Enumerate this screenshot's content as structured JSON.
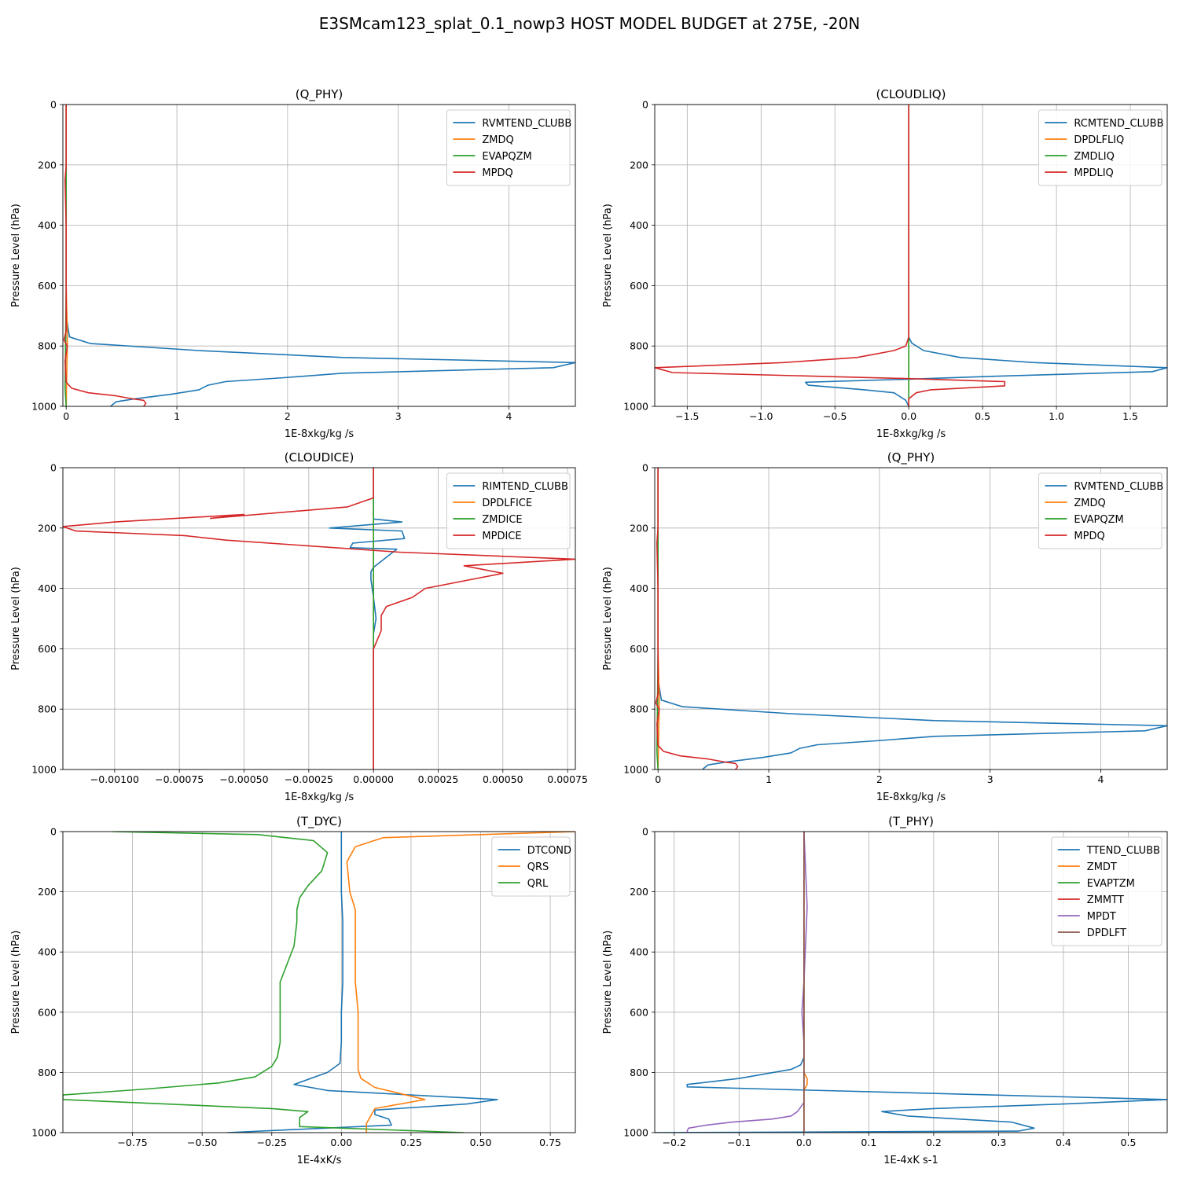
{
  "figure_title": "E3SMcam123_splat_0.1_nowp3 HOST MODEL BUDGET at 275E, -20N",
  "colors": {
    "c0": "#1f77b4",
    "c1": "#ff7f0e",
    "c2": "#2ca02c",
    "c3": "#d62728",
    "c4": "#9467bd",
    "c5": "#8c564b",
    "grid": "#b0b0b0"
  },
  "chart_data": [
    {
      "type": "line",
      "title": "(Q_PHY)",
      "xlabel": "1E-8xkg/kg /s",
      "ylabel": "Pressure Level (hPa)",
      "xlim": [
        -0.03,
        4.6
      ],
      "ylim": [
        1000,
        0
      ],
      "xticks": [
        0,
        1,
        2,
        3,
        4
      ],
      "xticklabels": [
        "0",
        "1",
        "2",
        "3",
        "4"
      ],
      "yticks": [
        0,
        200,
        400,
        600,
        800,
        1000
      ],
      "grid": true,
      "legend": "top-right",
      "series": [
        {
          "name": "RVMTEND_CLUBB",
          "color": "#1f77b4",
          "x": [
            0,
            0,
            0,
            0.03,
            0.22,
            1.2,
            2.5,
            4.6,
            4.4,
            2.5,
            1.97,
            1.44,
            1.28,
            1.2,
            0.95,
            0.62,
            0.45,
            0.4
          ],
          "y": [
            0,
            100,
            700,
            770,
            792,
            815,
            838,
            855,
            872,
            890,
            905,
            918,
            930,
            945,
            960,
            975,
            985,
            1000
          ]
        },
        {
          "name": "ZMDQ",
          "color": "#ff7f0e",
          "x": [
            0,
            0,
            0,
            0.01,
            0.01,
            0
          ],
          "y": [
            0,
            300,
            600,
            750,
            800,
            1000
          ]
        },
        {
          "name": "EVAPQZM",
          "color": "#2ca02c",
          "x": [
            0,
            0,
            0,
            -0.01,
            0
          ],
          "y": [
            0,
            200,
            600,
            940,
            1000
          ]
        },
        {
          "name": "MPDQ",
          "color": "#d62728",
          "x": [
            0,
            0,
            -0.01,
            0,
            0,
            0,
            -0.02,
            0.01,
            -0.01,
            0,
            0.05,
            0.2,
            0.45,
            0.6,
            0.7,
            0.72,
            0.7
          ],
          "y": [
            0,
            200,
            250,
            400,
            550,
            750,
            780,
            800,
            850,
            920,
            940,
            955,
            965,
            975,
            980,
            990,
            1000
          ]
        }
      ]
    },
    {
      "type": "line",
      "title": "(CLOUDLIQ)",
      "xlabel": "1E-8xkg/kg /s",
      "ylabel": "Pressure Level (hPa)",
      "xlim": [
        -1.72,
        1.75
      ],
      "ylim": [
        1000,
        0
      ],
      "xticks": [
        -1.5,
        -1.0,
        -0.5,
        0.0,
        0.5,
        1.0,
        1.5
      ],
      "xticklabels": [
        "−1.5",
        "−1.0",
        "−0.5",
        "0.0",
        "0.5",
        "1.0",
        "1.5"
      ],
      "yticks": [
        0,
        200,
        400,
        600,
        800,
        1000
      ],
      "grid": true,
      "legend": "top-right",
      "series": [
        {
          "name": "RCMTEND_CLUBB",
          "color": "#1f77b4",
          "x": [
            0,
            0,
            0,
            0.02,
            0.1,
            0.35,
            0.85,
            1.75,
            1.65,
            0.6,
            0,
            -0.7,
            -0.68,
            -0.3,
            -0.1,
            -0.02,
            0
          ],
          "y": [
            0,
            700,
            770,
            790,
            815,
            838,
            855,
            872,
            885,
            900,
            910,
            920,
            930,
            945,
            955,
            980,
            1000
          ]
        },
        {
          "name": "DPDLFLIQ",
          "color": "#ff7f0e",
          "x": [
            0,
            0
          ],
          "y": [
            0,
            1000
          ]
        },
        {
          "name": "ZMDLIQ",
          "color": "#2ca02c",
          "x": [
            0,
            0,
            0
          ],
          "y": [
            0,
            800,
            1000
          ]
        },
        {
          "name": "MPDLIQ",
          "color": "#d62728",
          "x": [
            0,
            0,
            0,
            -0.02,
            -0.1,
            -0.35,
            -0.85,
            -1.72,
            -1.6,
            0,
            0.65,
            0.65,
            0.15,
            0.05,
            0,
            0
          ],
          "y": [
            0,
            700,
            770,
            800,
            815,
            838,
            855,
            872,
            888,
            908,
            918,
            932,
            945,
            955,
            975,
            1000
          ]
        }
      ]
    },
    {
      "type": "line",
      "title": "(CLOUDICE)",
      "xlabel": "1E-8xkg/kg /s",
      "ylabel": "Pressure Level (hPa)",
      "xlim": [
        -0.0012,
        0.00078
      ],
      "ylim": [
        1000,
        0
      ],
      "xticks": [
        -0.001,
        -0.00075,
        -0.0005,
        -0.00025,
        0,
        0.00025,
        0.0005,
        0.00075
      ],
      "xticklabels": [
        "−0.00100",
        "−0.00075",
        "−0.00050",
        "−0.00025",
        "0.00000",
        "0.00025",
        "0.00050",
        "0.00075"
      ],
      "yticks": [
        0,
        200,
        400,
        600,
        800,
        1000
      ],
      "grid": true,
      "legend": "top-right",
      "series": [
        {
          "name": "RIMTEND_CLUBB",
          "color": "#1f77b4",
          "x": [
            0,
            0,
            0,
            0.00011,
            -0.00017,
            0.00011,
            0.00012,
            -8e-05,
            -9e-05,
            9e-05,
            0,
            -1e-05,
            -1e-05,
            0,
            1e-05,
            0,
            0
          ],
          "y": [
            0,
            120,
            170,
            180,
            200,
            210,
            235,
            250,
            265,
            270,
            330,
            345,
            370,
            430,
            500,
            550,
            1000
          ]
        },
        {
          "name": "DPDLFICE",
          "color": "#ff7f0e",
          "x": [
            0,
            0
          ],
          "y": [
            0,
            1000
          ]
        },
        {
          "name": "ZMDICE",
          "color": "#2ca02c",
          "x": [
            0,
            0,
            0
          ],
          "y": [
            0,
            110,
            1000
          ]
        },
        {
          "name": "MPDICE",
          "color": "#d62728",
          "x": [
            0,
            0,
            -0.0001,
            -0.00063,
            -0.0005,
            -0.001,
            -0.0012,
            -0.00115,
            -0.00073,
            -0.00057,
            0.0001,
            0.00078,
            0.00035,
            0.0005,
            0.0002,
            0.00015,
            5e-05,
            3e-05,
            3e-05,
            0,
            0,
            0
          ],
          "y": [
            0,
            100,
            130,
            168,
            155,
            180,
            195,
            210,
            225,
            240,
            280,
            303,
            325,
            350,
            400,
            430,
            460,
            490,
            540,
            600,
            700,
            1000
          ]
        }
      ]
    },
    {
      "type": "line",
      "title": "(Q_PHY)",
      "xlabel": "1E-8xkg/kg /s",
      "ylabel": "Pressure Level (hPa)",
      "xlim": [
        -0.03,
        4.6
      ],
      "ylim": [
        1000,
        0
      ],
      "xticks": [
        0,
        1,
        2,
        3,
        4
      ],
      "xticklabels": [
        "0",
        "1",
        "2",
        "3",
        "4"
      ],
      "yticks": [
        0,
        200,
        400,
        600,
        800,
        1000
      ],
      "grid": true,
      "legend": "top-right",
      "series": [
        {
          "name": "RVMTEND_CLUBB",
          "color": "#1f77b4",
          "x": [
            0,
            0,
            0,
            0.03,
            0.22,
            1.2,
            2.5,
            4.6,
            4.4,
            2.5,
            1.97,
            1.44,
            1.28,
            1.2,
            0.95,
            0.62,
            0.45,
            0.4
          ],
          "y": [
            0,
            100,
            700,
            770,
            792,
            815,
            838,
            855,
            872,
            890,
            905,
            918,
            930,
            945,
            960,
            975,
            985,
            1000
          ]
        },
        {
          "name": "ZMDQ",
          "color": "#ff7f0e",
          "x": [
            0,
            0,
            0,
            0.01,
            0.01,
            0
          ],
          "y": [
            0,
            300,
            600,
            750,
            800,
            1000
          ]
        },
        {
          "name": "EVAPQZM",
          "color": "#2ca02c",
          "x": [
            0,
            0,
            0,
            -0.01,
            0
          ],
          "y": [
            0,
            200,
            600,
            940,
            1000
          ]
        },
        {
          "name": "MPDQ",
          "color": "#d62728",
          "x": [
            0,
            0,
            -0.01,
            0,
            0,
            0,
            -0.02,
            0.01,
            -0.01,
            0,
            0.05,
            0.2,
            0.45,
            0.6,
            0.7,
            0.72,
            0.7
          ],
          "y": [
            0,
            200,
            250,
            400,
            550,
            750,
            780,
            800,
            850,
            920,
            940,
            955,
            965,
            975,
            980,
            990,
            1000
          ]
        }
      ]
    },
    {
      "type": "line",
      "title": "(T_DYC)",
      "xlabel": "1E-4xK/s",
      "ylabel": "Pressure Level (hPa)",
      "xlim": [
        -1.0,
        0.84
      ],
      "ylim": [
        1000,
        0
      ],
      "xticks": [
        -0.75,
        -0.5,
        -0.25,
        0,
        0.25,
        0.5,
        0.75
      ],
      "xticklabels": [
        "−0.75",
        "−0.50",
        "−0.25",
        "0.00",
        "0.25",
        "0.50",
        "0.75"
      ],
      "yticks": [
        0,
        200,
        400,
        600,
        800,
        1000
      ],
      "grid": true,
      "legend": "top-right",
      "series": [
        {
          "name": "DTCOND",
          "color": "#1f77b4",
          "x": [
            0,
            0,
            0,
            0.005,
            0.005,
            0,
            0,
            -0.005,
            -0.05,
            -0.17,
            -0.05,
            0.56,
            0.45,
            0.12,
            0.12,
            0.17,
            0.18,
            -0.41
          ],
          "y": [
            0,
            100,
            200,
            300,
            500,
            600,
            700,
            770,
            800,
            840,
            860,
            890,
            905,
            925,
            940,
            955,
            975,
            1000
          ]
        },
        {
          "name": "QRS",
          "color": "#ff7f0e",
          "x": [
            0.84,
            0.15,
            0.05,
            0.02,
            0.03,
            0.05,
            0.05,
            0.05,
            0.06,
            0.06,
            0.06,
            0.07,
            0.12,
            0.3,
            0.12,
            0.09,
            0.09
          ],
          "y": [
            0,
            20,
            50,
            100,
            200,
            260,
            300,
            500,
            600,
            700,
            790,
            820,
            850,
            890,
            920,
            970,
            1000
          ]
        },
        {
          "name": "QRL",
          "color": "#2ca02c",
          "x": [
            -0.82,
            -0.3,
            -0.1,
            -0.05,
            -0.07,
            -0.12,
            -0.15,
            -0.16,
            -0.16,
            -0.17,
            -0.22,
            -0.22,
            -0.22,
            -0.23,
            -0.25,
            -0.31,
            -0.44,
            -0.7,
            -1.0,
            -1.0,
            -0.25,
            -0.12,
            -0.15,
            -0.15,
            0.44
          ],
          "y": [
            0,
            10,
            30,
            70,
            130,
            180,
            220,
            260,
            300,
            380,
            500,
            600,
            700,
            750,
            780,
            815,
            835,
            855,
            875,
            890,
            920,
            930,
            950,
            980,
            1000
          ]
        }
      ]
    },
    {
      "type": "line",
      "title": "(T_PHY)",
      "xlabel": "1E-4xK s-1",
      "ylabel": "Pressure Level (hPa)",
      "xlim": [
        -0.23,
        0.56
      ],
      "ylim": [
        1000,
        0
      ],
      "xticks": [
        -0.2,
        -0.1,
        0,
        0.1,
        0.2,
        0.3,
        0.4,
        0.5
      ],
      "xticklabels": [
        "−0.2",
        "−0.1",
        "0.0",
        "0.1",
        "0.2",
        "0.3",
        "0.4",
        "0.5"
      ],
      "yticks": [
        0,
        200,
        400,
        600,
        800,
        1000
      ],
      "grid": true,
      "legend": "top-right",
      "series": [
        {
          "name": "TTEND_CLUBB",
          "color": "#1f77b4",
          "x": [
            0,
            0,
            0,
            0,
            0,
            -0.005,
            -0.02,
            -0.1,
            -0.18,
            -0.18,
            -0.18,
            -0.06,
            0.56,
            0.4,
            0.2,
            0.12,
            0.16,
            0.32,
            0.355,
            0.33,
            -0.23
          ],
          "y": [
            0,
            200,
            400,
            600,
            750,
            775,
            790,
            820,
            840,
            845,
            848,
            855,
            890,
            905,
            920,
            930,
            945,
            965,
            985,
            995,
            1000
          ]
        },
        {
          "name": "ZMDT",
          "color": "#ff7f0e",
          "x": [
            0,
            0,
            0,
            0.005,
            0.005,
            0,
            0
          ],
          "y": [
            0,
            400,
            800,
            820,
            840,
            860,
            1000
          ]
        },
        {
          "name": "EVAPTZM",
          "color": "#2ca02c",
          "x": [
            0,
            0
          ],
          "y": [
            0,
            1000
          ]
        },
        {
          "name": "ZMMTT",
          "color": "#d62728",
          "x": [
            0,
            0
          ],
          "y": [
            0,
            1000
          ]
        },
        {
          "name": "MPDT",
          "color": "#9467bd",
          "x": [
            0,
            0.002,
            0.005,
            0.003,
            0,
            -0.003,
            0,
            0,
            -0.01,
            -0.02,
            -0.05,
            -0.11,
            -0.15,
            -0.178,
            -0.18,
            -0.18
          ],
          "y": [
            0,
            100,
            250,
            350,
            500,
            600,
            700,
            900,
            930,
            945,
            955,
            965,
            975,
            985,
            995,
            1000
          ]
        },
        {
          "name": "DPDLFT",
          "color": "#8c564b",
          "x": [
            0,
            0
          ],
          "y": [
            0,
            1000
          ]
        }
      ]
    }
  ]
}
